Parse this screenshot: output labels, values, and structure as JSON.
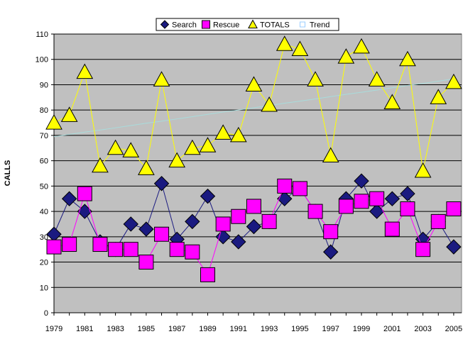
{
  "chart_data": {
    "type": "line",
    "title": "",
    "xlabel": "",
    "ylabel": "CALLS",
    "ylim": [
      0,
      110
    ],
    "yticks": [
      0,
      10,
      20,
      30,
      40,
      50,
      60,
      70,
      80,
      90,
      100,
      110
    ],
    "x": [
      1979,
      1980,
      1981,
      1982,
      1983,
      1984,
      1985,
      1986,
      1987,
      1988,
      1989,
      1990,
      1991,
      1992,
      1993,
      1994,
      1995,
      1996,
      1997,
      1998,
      1999,
      2000,
      2001,
      2002,
      2003,
      2004,
      2005
    ],
    "xtick_labels": [
      "1979",
      "1981",
      "1983",
      "1985",
      "1987",
      "1989",
      "1991",
      "1993",
      "1995",
      "1997",
      "1999",
      "2001",
      "2003",
      "2005"
    ],
    "grid": "horizontal",
    "plot_background": "#c0c0c0",
    "legend_position": "top",
    "series": [
      {
        "name": "Search",
        "marker": "diamond",
        "color": "#1a1a80",
        "line_color": "#1a1a80",
        "values": [
          31,
          45,
          40,
          28,
          25,
          35,
          33,
          51,
          29,
          36,
          46,
          30,
          28,
          34,
          36,
          45,
          49,
          40,
          24,
          45,
          52,
          40,
          45,
          47,
          29,
          36,
          26
        ]
      },
      {
        "name": "Rescue",
        "marker": "square",
        "color": "#ff00ff",
        "line_color": "#ff00ff",
        "values": [
          26,
          27,
          47,
          27,
          25,
          25,
          20,
          31,
          25,
          24,
          15,
          35,
          38,
          42,
          36,
          50,
          49,
          40,
          32,
          42,
          44,
          45,
          33,
          41,
          25,
          36,
          41
        ]
      },
      {
        "name": "TOTALS",
        "marker": "triangle",
        "color": "#ffff00",
        "line_color": "#ffff00",
        "values": [
          75,
          78,
          95,
          58,
          65,
          64,
          57,
          92,
          60,
          65,
          66,
          71,
          70,
          90,
          82,
          106,
          104,
          92,
          62,
          101,
          105,
          92,
          83,
          100,
          56,
          85,
          91
        ]
      },
      {
        "name": "Trend",
        "marker": "line",
        "color": "#99ccff",
        "line_color": "#a8dcdc",
        "values": [
          69.5,
          70.4,
          71.3,
          72.1,
          73.0,
          73.9,
          74.8,
          75.6,
          76.5,
          77.4,
          78.3,
          79.2,
          80.0,
          80.9,
          81.8,
          82.7,
          83.5,
          84.4,
          85.3,
          86.2,
          87.0,
          87.9,
          88.8,
          89.7,
          90.5,
          91.4,
          92.3
        ]
      }
    ]
  }
}
